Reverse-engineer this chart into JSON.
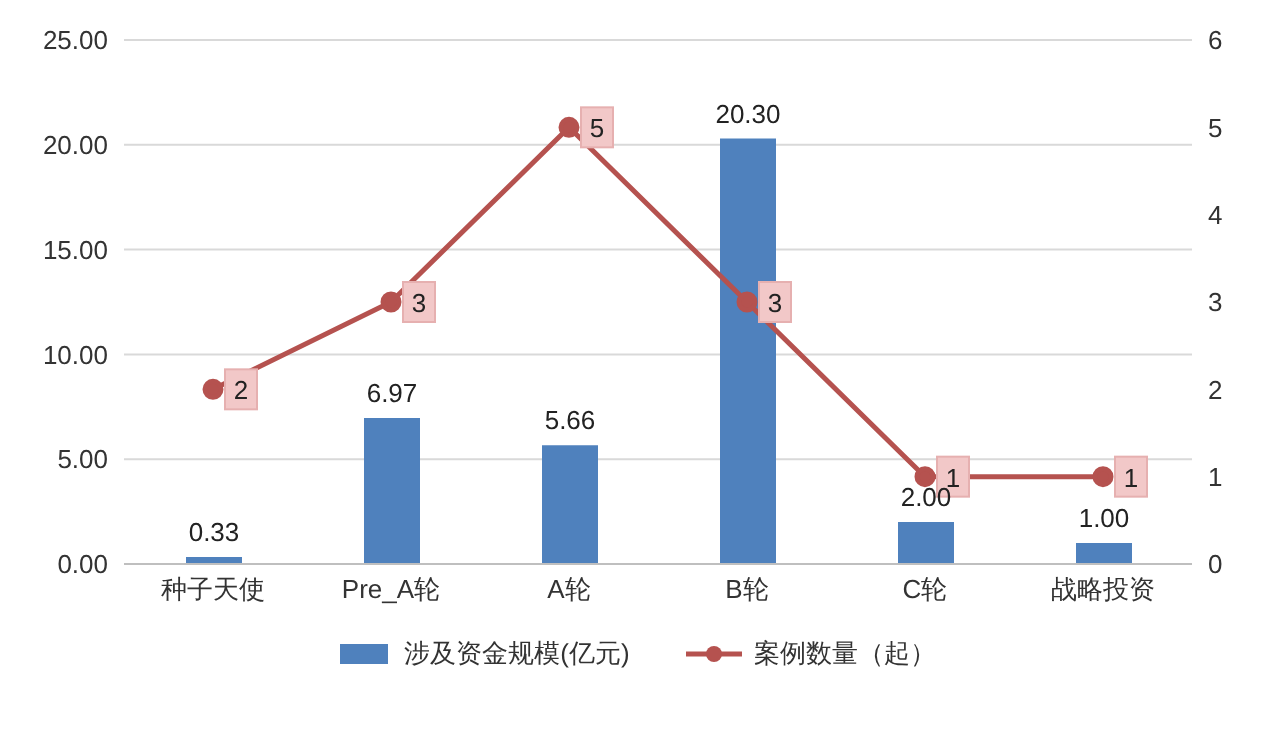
{
  "chart_data": {
    "type": "bar",
    "categories": [
      "种子天使",
      "Pre_A轮",
      "A轮",
      "B轮",
      "C轮",
      "战略投资"
    ],
    "series": [
      {
        "name": "涉及资金规模(亿元)",
        "color": "#4f81bd",
        "values": [
          0.33,
          6.97,
          5.66,
          20.3,
          2.0,
          1.0
        ],
        "value_labels": [
          "0.33",
          "6.97",
          "5.66",
          "20.30",
          "2.00",
          "1.00"
        ]
      },
      {
        "name": "案例数量（起）",
        "type": "line",
        "axis": "y2",
        "color": "#b5524f",
        "values": [
          2,
          3,
          5,
          3,
          1,
          1
        ],
        "value_labels": [
          "2",
          "3",
          "5",
          "3",
          "1",
          "1"
        ]
      }
    ],
    "ylim": [
      0,
      25
    ],
    "yticks": [
      {
        "value": 0,
        "label": "0.00"
      },
      {
        "value": 5,
        "label": "5.00"
      },
      {
        "value": 10,
        "label": "10.00"
      },
      {
        "value": 15,
        "label": "15.00"
      },
      {
        "value": 20,
        "label": "20.00"
      },
      {
        "value": 25,
        "label": "25.00"
      }
    ],
    "y2lim": [
      0,
      6
    ],
    "y2ticks": [
      0,
      1,
      2,
      3,
      4,
      5,
      6
    ],
    "grid": "y",
    "legend": "bottom",
    "marker": "circle",
    "line_style": "solid"
  }
}
